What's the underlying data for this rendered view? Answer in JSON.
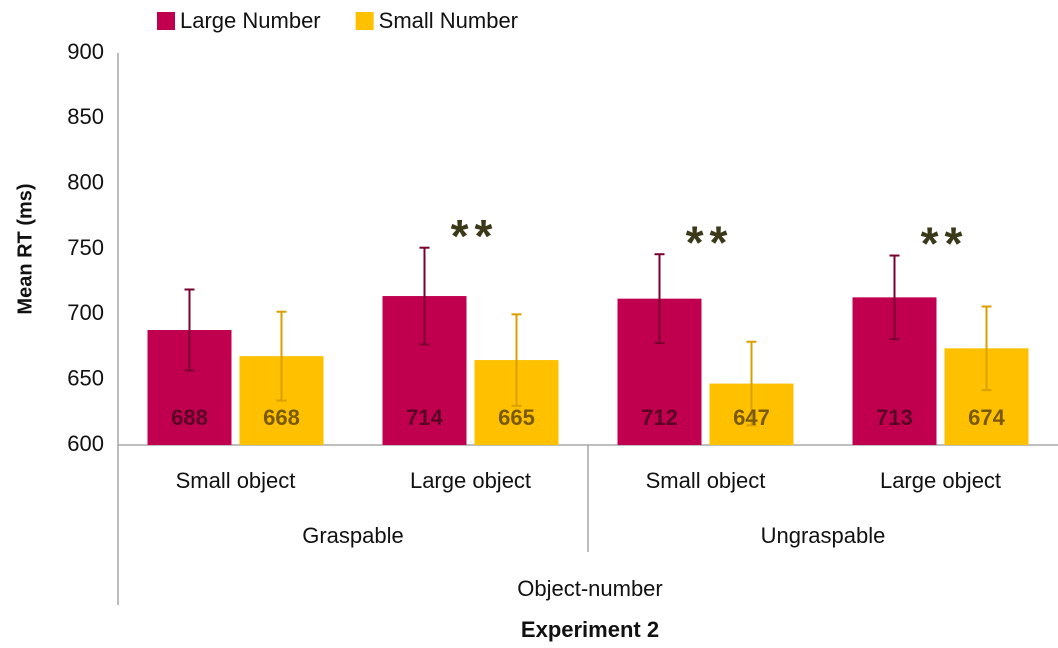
{
  "chart_data": {
    "type": "bar",
    "title": "Experiment 2",
    "x_label": "Object-number",
    "y_label": "Mean RT (ms)",
    "categories": [
      "Small object",
      "Large object",
      "Small object",
      "Large object"
    ],
    "groups": [
      "Graspable",
      "Ungraspable"
    ],
    "series": [
      {
        "name": "Large Number",
        "color": "#c0004f",
        "error_color": "#7a0030",
        "label_color": "#5a0025",
        "values": [
          688,
          714,
          712,
          713
        ],
        "errors": [
          31,
          37,
          34,
          32
        ]
      },
      {
        "name": "Small Number",
        "color": "#ffc000",
        "error_color": "#d9a000",
        "label_color": "#7a5a00",
        "values": [
          668,
          665,
          647,
          674
        ],
        "errors": [
          34,
          35,
          32,
          32
        ]
      }
    ],
    "significance": [
      null,
      "**",
      "**",
      "**"
    ],
    "ylim": [
      600,
      900
    ],
    "yticks": [
      600,
      650,
      700,
      750,
      800,
      850,
      900
    ],
    "grid": false,
    "legend": "top-left"
  }
}
